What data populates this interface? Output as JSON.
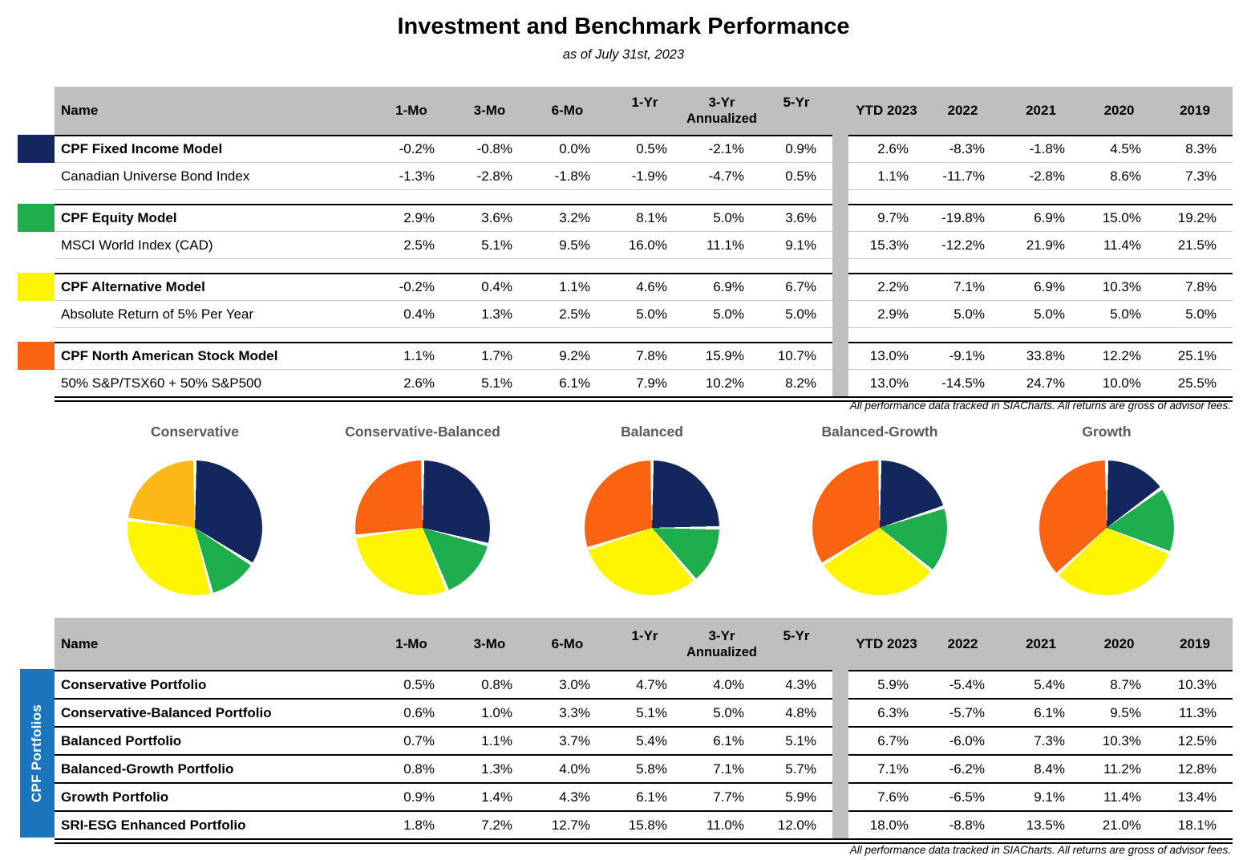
{
  "title": "Investment and Benchmark Performance",
  "subtitle": "as of July 31st, 2023",
  "footnote": "All performance data tracked in SIACharts. All returns are gross of advisor fees.",
  "colors": {
    "navy": "#13265E",
    "green": "#1FAE4D",
    "yellow": "#FFF500",
    "amber": "#FBB817",
    "orange": "#F96311",
    "header_gray": "#BFBFBF",
    "sidebar_blue": "#1B75BC",
    "pie_title_gray": "#595959"
  },
  "columns": {
    "name": "Name",
    "periods": [
      "1-Mo",
      "3-Mo",
      "6-Mo",
      "1-Yr",
      "3-Yr",
      "5-Yr"
    ],
    "annualized": "Annualized",
    "years": [
      "YTD 2023",
      "2022",
      "2021",
      "2020",
      "2019"
    ]
  },
  "models_table": {
    "groups": [
      {
        "swatch_color": "navy",
        "model": {
          "name": "CPF Fixed Income Model",
          "values": [
            "-0.2%",
            "-0.8%",
            "0.0%",
            "0.5%",
            "-2.1%",
            "0.9%",
            "2.6%",
            "-8.3%",
            "-1.8%",
            "4.5%",
            "8.3%"
          ]
        },
        "benchmark": {
          "name": "Canadian Universe Bond Index",
          "values": [
            "-1.3%",
            "-2.8%",
            "-1.8%",
            "-1.9%",
            "-4.7%",
            "0.5%",
            "1.1%",
            "-11.7%",
            "-2.8%",
            "8.6%",
            "7.3%"
          ]
        }
      },
      {
        "swatch_color": "green",
        "model": {
          "name": "CPF Equity Model",
          "values": [
            "2.9%",
            "3.6%",
            "3.2%",
            "8.1%",
            "5.0%",
            "3.6%",
            "9.7%",
            "-19.8%",
            "6.9%",
            "15.0%",
            "19.2%"
          ]
        },
        "benchmark": {
          "name": "MSCI World Index (CAD)",
          "values": [
            "2.5%",
            "5.1%",
            "9.5%",
            "16.0%",
            "11.1%",
            "9.1%",
            "15.3%",
            "-12.2%",
            "21.9%",
            "11.4%",
            "21.5%"
          ]
        }
      },
      {
        "swatch_color": "yellow",
        "model": {
          "name": "CPF Alternative Model",
          "values": [
            "-0.2%",
            "0.4%",
            "1.1%",
            "4.6%",
            "6.9%",
            "6.7%",
            "2.2%",
            "7.1%",
            "6.9%",
            "10.3%",
            "7.8%"
          ]
        },
        "benchmark": {
          "name": "Absolute Return of 5% Per Year",
          "values": [
            "0.4%",
            "1.3%",
            "2.5%",
            "5.0%",
            "5.0%",
            "5.0%",
            "2.9%",
            "5.0%",
            "5.0%",
            "5.0%",
            "5.0%"
          ]
        }
      },
      {
        "swatch_color": "orange",
        "model": {
          "name": "CPF North American Stock Model",
          "values": [
            "1.1%",
            "1.7%",
            "9.2%",
            "7.8%",
            "15.9%",
            "10.7%",
            "13.0%",
            "-9.1%",
            "33.8%",
            "12.2%",
            "25.1%"
          ]
        },
        "benchmark": {
          "name": "50% S&P/TSX60 + 50% S&P500",
          "values": [
            "2.6%",
            "5.1%",
            "6.1%",
            "7.9%",
            "10.2%",
            "8.2%",
            "13.0%",
            "-14.5%",
            "24.7%",
            "10.0%",
            "25.5%"
          ]
        }
      }
    ]
  },
  "pies": [
    {
      "title": "Conservative",
      "slice_colors": [
        "navy",
        "green",
        "yellow",
        "amber"
      ],
      "values": [
        34,
        12,
        31,
        23
      ]
    },
    {
      "title": "Conservative-Balanced",
      "slice_colors": [
        "navy",
        "green",
        "yellow",
        "orange"
      ],
      "values": [
        29,
        15,
        29,
        27
      ]
    },
    {
      "title": "Balanced",
      "slice_colors": [
        "navy",
        "green",
        "yellow",
        "orange"
      ],
      "values": [
        25,
        14,
        31,
        30
      ]
    },
    {
      "title": "Balanced-Growth",
      "slice_colors": [
        "navy",
        "green",
        "yellow",
        "orange"
      ],
      "values": [
        20,
        16,
        30,
        34
      ]
    },
    {
      "title": "Growth",
      "slice_colors": [
        "navy",
        "green",
        "yellow",
        "orange"
      ],
      "values": [
        15,
        16,
        32,
        37
      ]
    }
  ],
  "portfolios_table": {
    "sidebar_label": "CPF Portfolios",
    "rows": [
      {
        "name": "Conservative Portfolio",
        "values": [
          "0.5%",
          "0.8%",
          "3.0%",
          "4.7%",
          "4.0%",
          "4.3%",
          "5.9%",
          "-5.4%",
          "5.4%",
          "8.7%",
          "10.3%"
        ]
      },
      {
        "name": "Conservative-Balanced Portfolio",
        "values": [
          "0.6%",
          "1.0%",
          "3.3%",
          "5.1%",
          "5.0%",
          "4.8%",
          "6.3%",
          "-5.7%",
          "6.1%",
          "9.5%",
          "11.3%"
        ]
      },
      {
        "name": "Balanced Portfolio",
        "values": [
          "0.7%",
          "1.1%",
          "3.7%",
          "5.4%",
          "6.1%",
          "5.1%",
          "6.7%",
          "-6.0%",
          "7.3%",
          "10.3%",
          "12.5%"
        ]
      },
      {
        "name": "Balanced-Growth Portfolio",
        "values": [
          "0.8%",
          "1.3%",
          "4.0%",
          "5.8%",
          "7.1%",
          "5.7%",
          "7.1%",
          "-6.2%",
          "8.4%",
          "11.2%",
          "12.8%"
        ]
      },
      {
        "name": "Growth Portfolio",
        "values": [
          "0.9%",
          "1.4%",
          "4.3%",
          "6.1%",
          "7.7%",
          "5.9%",
          "7.6%",
          "-6.5%",
          "9.1%",
          "11.4%",
          "13.4%"
        ]
      },
      {
        "name": "SRI-ESG Enhanced Portfolio",
        "values": [
          "1.8%",
          "7.2%",
          "12.7%",
          "15.8%",
          "11.0%",
          "12.0%",
          "18.0%",
          "-8.8%",
          "13.5%",
          "21.0%",
          "18.1%"
        ]
      }
    ]
  },
  "chart_data": [
    {
      "type": "pie",
      "title": "Conservative",
      "labels": [
        "navy",
        "green",
        "yellow",
        "amber"
      ],
      "colors": [
        "#13265E",
        "#1FAE4D",
        "#FFF500",
        "#FBB817"
      ],
      "values": [
        34,
        12,
        31,
        23
      ],
      "note": "slice percentages estimated from pie geometry; no data labels shown"
    },
    {
      "type": "pie",
      "title": "Conservative-Balanced",
      "labels": [
        "navy",
        "green",
        "yellow",
        "orange"
      ],
      "colors": [
        "#13265E",
        "#1FAE4D",
        "#FFF500",
        "#F96311"
      ],
      "values": [
        29,
        15,
        29,
        27
      ],
      "note": "slice percentages estimated from pie geometry; no data labels shown"
    },
    {
      "type": "pie",
      "title": "Balanced",
      "labels": [
        "navy",
        "green",
        "yellow",
        "orange"
      ],
      "colors": [
        "#13265E",
        "#1FAE4D",
        "#FFF500",
        "#F96311"
      ],
      "values": [
        25,
        14,
        31,
        30
      ],
      "note": "slice percentages estimated from pie geometry; no data labels shown"
    },
    {
      "type": "pie",
      "title": "Balanced-Growth",
      "labels": [
        "navy",
        "green",
        "yellow",
        "orange"
      ],
      "colors": [
        "#13265E",
        "#1FAE4D",
        "#FFF500",
        "#F96311"
      ],
      "values": [
        20,
        16,
        30,
        34
      ],
      "note": "slice percentages estimated from pie geometry; no data labels shown"
    },
    {
      "type": "pie",
      "title": "Growth",
      "labels": [
        "navy",
        "green",
        "yellow",
        "orange"
      ],
      "colors": [
        "#13265E",
        "#1FAE4D",
        "#FFF500",
        "#F96311"
      ],
      "values": [
        15,
        16,
        32,
        37
      ],
      "note": "slice percentages estimated from pie geometry; no data labels shown"
    },
    {
      "type": "table",
      "title": "Investment and Benchmark Performance",
      "columns": [
        "Name",
        "1-Mo",
        "3-Mo",
        "6-Mo",
        "1-Yr",
        "3-Yr Annualized",
        "5-Yr",
        "YTD 2023",
        "2022",
        "2021",
        "2020",
        "2019"
      ],
      "rows": [
        [
          "CPF Fixed Income Model",
          "-0.2%",
          "-0.8%",
          "0.0%",
          "0.5%",
          "-2.1%",
          "0.9%",
          "2.6%",
          "-8.3%",
          "-1.8%",
          "4.5%",
          "8.3%"
        ],
        [
          "Canadian Universe Bond Index",
          "-1.3%",
          "-2.8%",
          "-1.8%",
          "-1.9%",
          "-4.7%",
          "0.5%",
          "1.1%",
          "-11.7%",
          "-2.8%",
          "8.6%",
          "7.3%"
        ],
        [
          "CPF Equity Model",
          "2.9%",
          "3.6%",
          "3.2%",
          "8.1%",
          "5.0%",
          "3.6%",
          "9.7%",
          "-19.8%",
          "6.9%",
          "15.0%",
          "19.2%"
        ],
        [
          "MSCI World Index (CAD)",
          "2.5%",
          "5.1%",
          "9.5%",
          "16.0%",
          "11.1%",
          "9.1%",
          "15.3%",
          "-12.2%",
          "21.9%",
          "11.4%",
          "21.5%"
        ],
        [
          "CPF Alternative Model",
          "-0.2%",
          "0.4%",
          "1.1%",
          "4.6%",
          "6.9%",
          "6.7%",
          "2.2%",
          "7.1%",
          "6.9%",
          "10.3%",
          "7.8%"
        ],
        [
          "Absolute Return of 5% Per Year",
          "0.4%",
          "1.3%",
          "2.5%",
          "5.0%",
          "5.0%",
          "5.0%",
          "2.9%",
          "5.0%",
          "5.0%",
          "5.0%",
          "5.0%"
        ],
        [
          "CPF North American Stock Model",
          "1.1%",
          "1.7%",
          "9.2%",
          "7.8%",
          "15.9%",
          "10.7%",
          "13.0%",
          "-9.1%",
          "33.8%",
          "12.2%",
          "25.1%"
        ],
        [
          "50% S&P/TSX60 + 50% S&P500",
          "2.6%",
          "5.1%",
          "6.1%",
          "7.9%",
          "10.2%",
          "8.2%",
          "13.0%",
          "-14.5%",
          "24.7%",
          "10.0%",
          "25.5%"
        ]
      ]
    },
    {
      "type": "table",
      "title": "CPF Portfolios",
      "columns": [
        "Name",
        "1-Mo",
        "3-Mo",
        "6-Mo",
        "1-Yr",
        "3-Yr Annualized",
        "5-Yr",
        "YTD 2023",
        "2022",
        "2021",
        "2020",
        "2019"
      ],
      "rows": [
        [
          "Conservative Portfolio",
          "0.5%",
          "0.8%",
          "3.0%",
          "4.7%",
          "4.0%",
          "4.3%",
          "5.9%",
          "-5.4%",
          "5.4%",
          "8.7%",
          "10.3%"
        ],
        [
          "Conservative-Balanced Portfolio",
          "0.6%",
          "1.0%",
          "3.3%",
          "5.1%",
          "5.0%",
          "4.8%",
          "6.3%",
          "-5.7%",
          "6.1%",
          "9.5%",
          "11.3%"
        ],
        [
          "Balanced Portfolio",
          "0.7%",
          "1.1%",
          "3.7%",
          "5.4%",
          "6.1%",
          "5.1%",
          "6.7%",
          "-6.0%",
          "7.3%",
          "10.3%",
          "12.5%"
        ],
        [
          "Balanced-Growth Portfolio",
          "0.8%",
          "1.3%",
          "4.0%",
          "5.8%",
          "7.1%",
          "5.7%",
          "7.1%",
          "-6.2%",
          "8.4%",
          "11.2%",
          "12.8%"
        ],
        [
          "Growth Portfolio",
          "0.9%",
          "1.4%",
          "4.3%",
          "6.1%",
          "7.7%",
          "5.9%",
          "7.6%",
          "-6.5%",
          "9.1%",
          "11.4%",
          "13.4%"
        ],
        [
          "SRI-ESG Enhanced Portfolio",
          "1.8%",
          "7.2%",
          "12.7%",
          "15.8%",
          "11.0%",
          "12.0%",
          "18.0%",
          "-8.8%",
          "13.5%",
          "21.0%",
          "18.1%"
        ]
      ]
    }
  ]
}
